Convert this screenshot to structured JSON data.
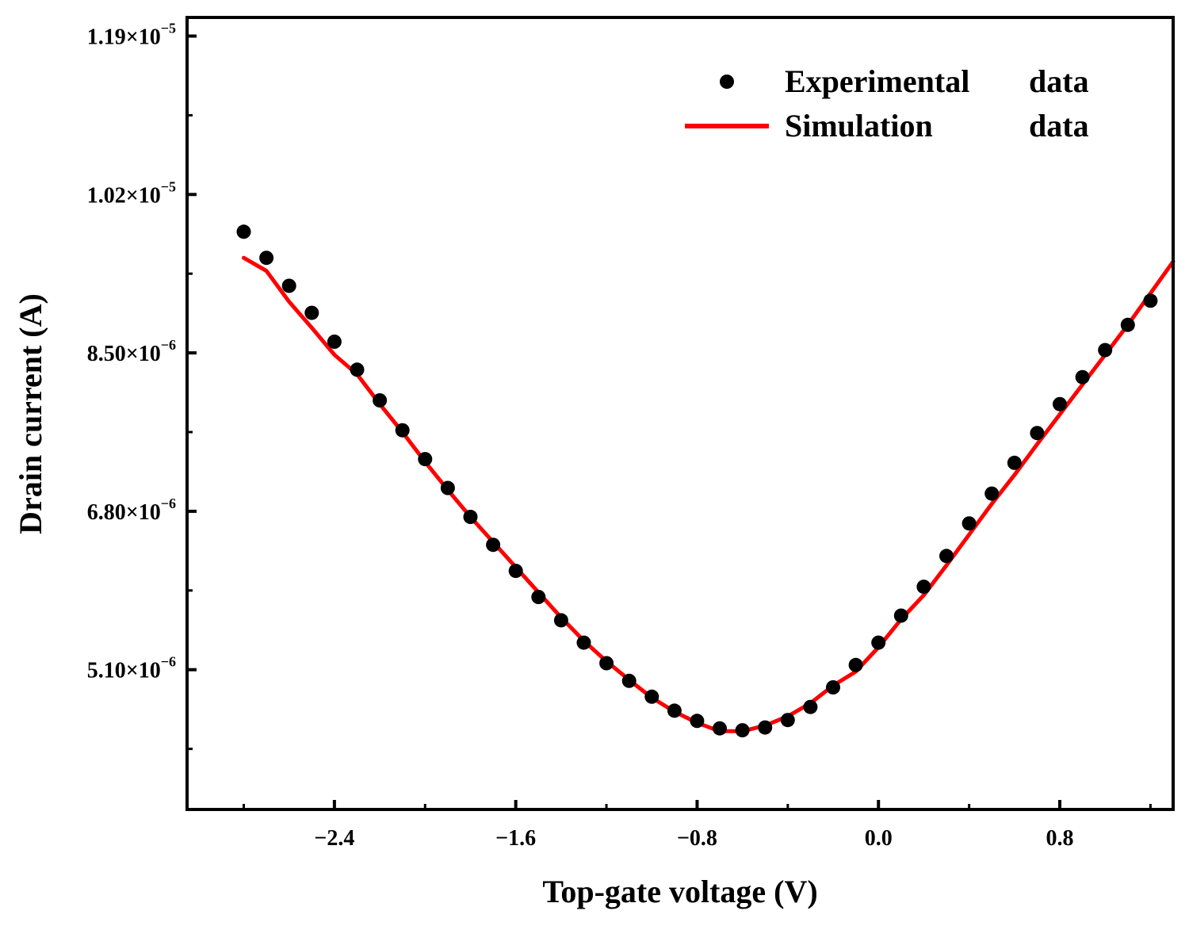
{
  "chart_data": {
    "type": "scatter",
    "xlabel": "Top-gate voltage (V)",
    "ylabel": "Drain current (A)",
    "xlim": [
      -3.05,
      1.3
    ],
    "ylim": [
      3.6e-06,
      1.21e-05
    ],
    "x_ticks": [
      {
        "value": -2.4,
        "label": "−2.4"
      },
      {
        "value": -1.6,
        "label": "−1.6"
      },
      {
        "value": -0.8,
        "label": "−0.8"
      },
      {
        "value": 0.0,
        "label": "0.0"
      },
      {
        "value": 0.8,
        "label": "0.8"
      }
    ],
    "x_minor_ticks": [
      -2.8,
      -2.0,
      -1.2,
      -0.4,
      0.4,
      1.2
    ],
    "y_ticks": [
      {
        "value": 1.19e-05,
        "mantissa": "1.19",
        "exponent": "−5"
      },
      {
        "value": 1.02e-05,
        "mantissa": "1.02",
        "exponent": "−5"
      },
      {
        "value": 8.5e-06,
        "mantissa": "8.50",
        "exponent": "−6"
      },
      {
        "value": 6.8e-06,
        "mantissa": "6.80",
        "exponent": "−6"
      },
      {
        "value": 5.1e-06,
        "mantissa": "5.10",
        "exponent": "−6"
      }
    ],
    "y_minor_ticks": [
      1.105e-05,
      9.35e-06,
      7.65e-06,
      5.95e-06,
      4.25e-06
    ],
    "times_label": "×10",
    "legend": {
      "position": "top-right",
      "entries": [
        {
          "name": "Experimental",
          "suffix": "data",
          "marker": "dot"
        },
        {
          "name": "Simulation",
          "suffix": "data",
          "marker": "line"
        }
      ]
    },
    "series": [
      {
        "name": "Experimental data",
        "style": "scatter",
        "color": "#000000",
        "x": [
          -2.8,
          -2.7,
          -2.6,
          -2.5,
          -2.4,
          -2.3,
          -2.2,
          -2.1,
          -2.0,
          -1.9,
          -1.8,
          -1.7,
          -1.6,
          -1.5,
          -1.4,
          -1.3,
          -1.2,
          -1.1,
          -1.0,
          -0.9,
          -0.8,
          -0.7,
          -0.6,
          -0.5,
          -0.4,
          -0.3,
          -0.2,
          -0.1,
          0.0,
          0.1,
          0.2,
          0.3,
          0.4,
          0.5,
          0.6,
          0.7,
          0.8,
          0.9,
          1.0,
          1.1,
          1.2
        ],
        "y": [
          9.8e-06,
          9.52e-06,
          9.22e-06,
          8.93e-06,
          8.62e-06,
          8.32e-06,
          7.99e-06,
          7.67e-06,
          7.36e-06,
          7.05e-06,
          6.74e-06,
          6.44e-06,
          6.16e-06,
          5.88e-06,
          5.63e-06,
          5.39e-06,
          5.17e-06,
          4.98e-06,
          4.81e-06,
          4.66e-06,
          4.55e-06,
          4.47e-06,
          4.45e-06,
          4.48e-06,
          4.56e-06,
          4.7e-06,
          4.91e-06,
          5.15e-06,
          5.39e-06,
          5.68e-06,
          5.99e-06,
          6.32e-06,
          6.67e-06,
          6.99e-06,
          7.32e-06,
          7.64e-06,
          7.95e-06,
          8.24e-06,
          8.53e-06,
          8.8e-06,
          9.06e-06
        ]
      },
      {
        "name": "Simulation data",
        "style": "line",
        "color": "#ff0000",
        "x": [
          -2.8,
          -2.7,
          -2.6,
          -2.5,
          -2.4,
          -2.3,
          -2.2,
          -2.1,
          -2.0,
          -1.9,
          -1.8,
          -1.7,
          -1.6,
          -1.5,
          -1.4,
          -1.3,
          -1.2,
          -1.1,
          -1.0,
          -0.9,
          -0.8,
          -0.7,
          -0.6,
          -0.5,
          -0.4,
          -0.3,
          -0.2,
          -0.1,
          0.0,
          0.1,
          0.2,
          0.3,
          0.4,
          0.5,
          0.6,
          0.7,
          0.8,
          0.9,
          1.0,
          1.1,
          1.2,
          1.3
        ],
        "y": [
          9.52e-06,
          9.38e-06,
          9.05e-06,
          8.77e-06,
          8.48e-06,
          8.27e-06,
          7.95e-06,
          7.65e-06,
          7.33e-06,
          7.03e-06,
          6.74e-06,
          6.47e-06,
          6.2e-06,
          5.93e-06,
          5.66e-06,
          5.41e-06,
          5.19e-06,
          4.99e-06,
          4.8e-06,
          4.65e-06,
          4.53e-06,
          4.44e-06,
          4.44e-06,
          4.5e-06,
          4.6e-06,
          4.74e-06,
          4.93e-06,
          5.08e-06,
          5.34e-06,
          5.64e-06,
          5.9e-06,
          6.22e-06,
          6.55e-06,
          6.88e-06,
          7.19e-06,
          7.52e-06,
          7.84e-06,
          8.16e-06,
          8.48e-06,
          8.8e-06,
          9.14e-06,
          9.48e-06
        ]
      }
    ]
  }
}
